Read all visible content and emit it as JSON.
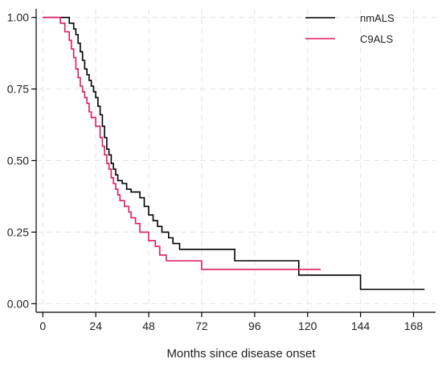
{
  "chart_data": {
    "type": "line",
    "step": true,
    "title": "",
    "xlabel": "Months since disease onset",
    "ylabel": "",
    "xlim": [
      -3,
      178
    ],
    "ylim": [
      -0.03,
      1.03
    ],
    "x_ticks": [
      0,
      24,
      48,
      72,
      96,
      120,
      144,
      168
    ],
    "x_tick_labels": [
      "0",
      "24",
      "48",
      "72",
      "96",
      "120",
      "144",
      "168"
    ],
    "y_ticks": [
      0,
      0.25,
      0.5,
      0.75,
      1
    ],
    "y_tick_labels": [
      "0.00",
      "0.25",
      "0.50",
      "0.75",
      "1.00"
    ],
    "grid": true,
    "legend_position": "top-right",
    "series": [
      {
        "name": "nmALS",
        "color": "#000000",
        "x": [
          0,
          12,
          14,
          15,
          16,
          17,
          18,
          19,
          20,
          21,
          22,
          23,
          24,
          25,
          26,
          27,
          28,
          29,
          30,
          31,
          32,
          33,
          34,
          36,
          38,
          40,
          44,
          46,
          48,
          50,
          52,
          54,
          57,
          59,
          62,
          87,
          116,
          144,
          173
        ],
        "y": [
          1,
          0.98,
          0.96,
          0.94,
          0.91,
          0.88,
          0.85,
          0.82,
          0.8,
          0.78,
          0.76,
          0.74,
          0.72,
          0.69,
          0.66,
          0.62,
          0.58,
          0.54,
          0.52,
          0.49,
          0.47,
          0.45,
          0.43,
          0.42,
          0.4,
          0.39,
          0.37,
          0.34,
          0.31,
          0.29,
          0.27,
          0.25,
          0.23,
          0.21,
          0.19,
          0.15,
          0.1,
          0.05,
          0.05
        ]
      },
      {
        "name": "C9ALS",
        "color": "#e0195c",
        "x": [
          0,
          8,
          10,
          12,
          13,
          14,
          15,
          16,
          17,
          18,
          19,
          20,
          21,
          22,
          24,
          26,
          27,
          28,
          29,
          30,
          31,
          32,
          33,
          34,
          35,
          37,
          39,
          40,
          42,
          44,
          48,
          51,
          53,
          56,
          72,
          126
        ],
        "y": [
          1,
          0.98,
          0.95,
          0.92,
          0.89,
          0.86,
          0.82,
          0.79,
          0.76,
          0.74,
          0.72,
          0.7,
          0.67,
          0.65,
          0.62,
          0.58,
          0.55,
          0.52,
          0.49,
          0.47,
          0.44,
          0.42,
          0.4,
          0.38,
          0.36,
          0.34,
          0.32,
          0.3,
          0.28,
          0.25,
          0.22,
          0.2,
          0.17,
          0.15,
          0.12,
          0.12
        ]
      }
    ]
  }
}
